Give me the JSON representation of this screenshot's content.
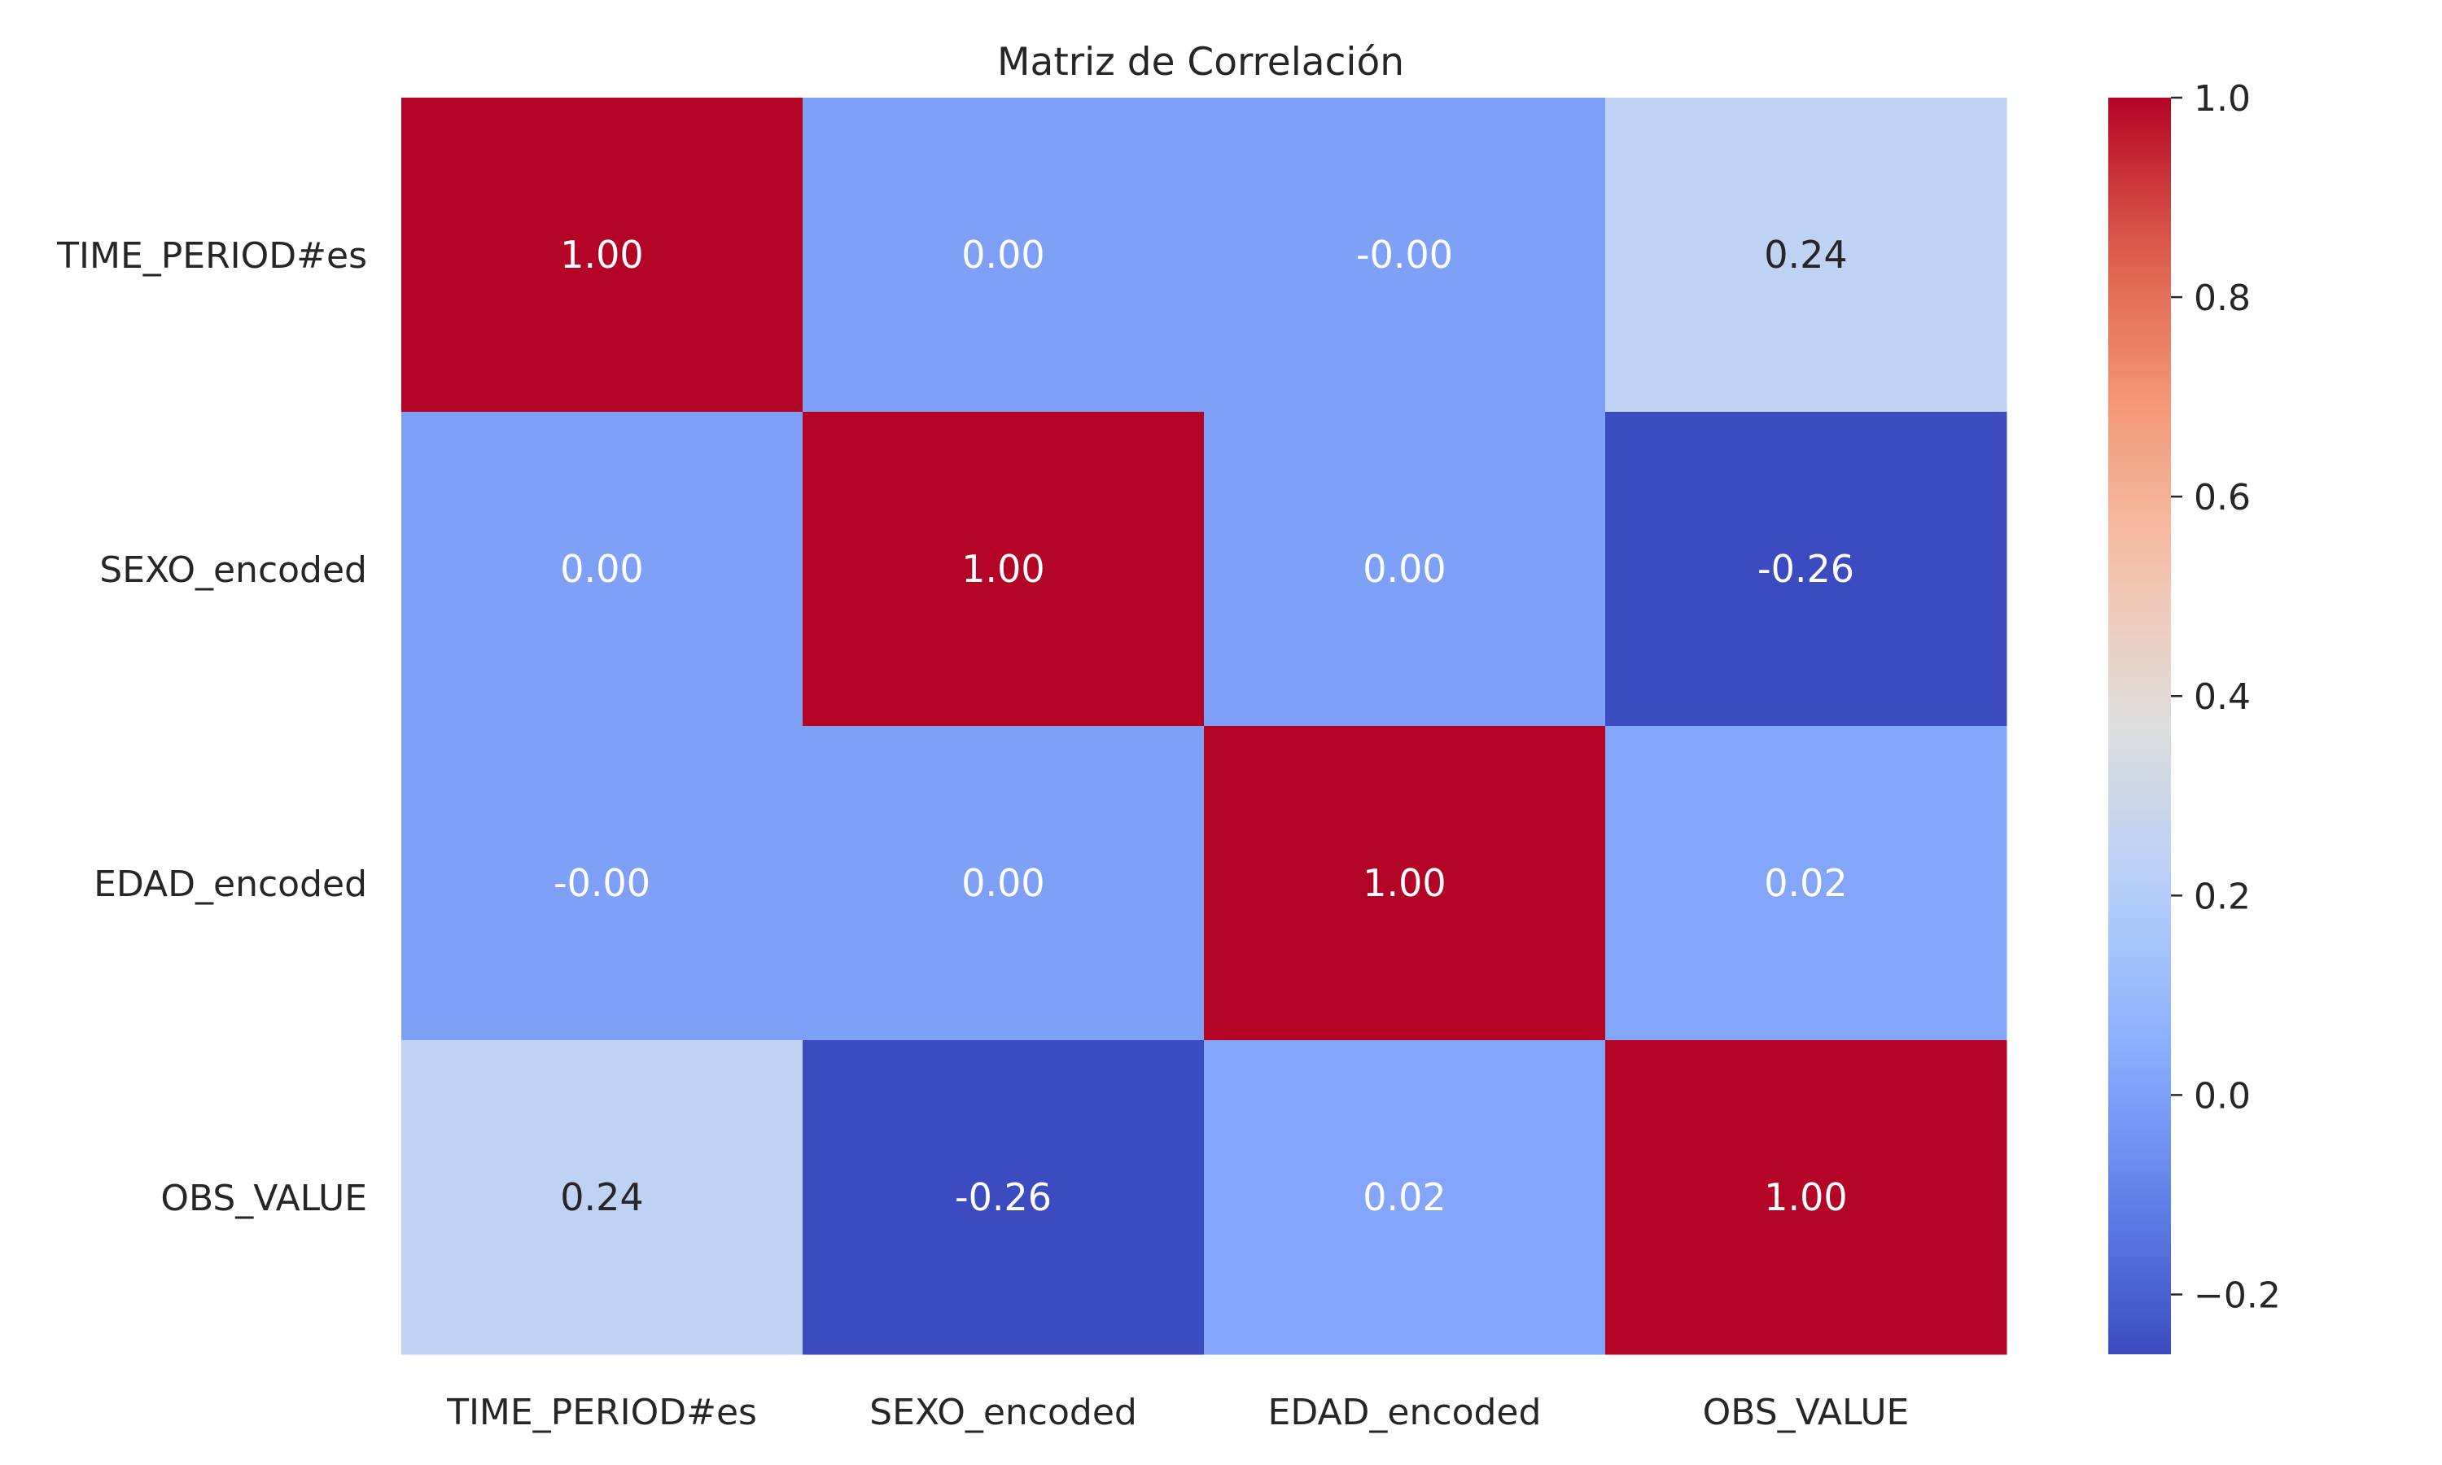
{
  "chart_data": {
    "type": "heatmap",
    "title": "Matriz de Correlación",
    "row_labels": [
      "TIME_PERIOD#es",
      "SEXO_encoded",
      "EDAD_encoded",
      "OBS_VALUE"
    ],
    "col_labels": [
      "TIME_PERIOD#es",
      "SEXO_encoded",
      "EDAD_encoded",
      "OBS_VALUE"
    ],
    "values": [
      [
        1.0,
        0.0,
        -0.0,
        0.24
      ],
      [
        0.0,
        1.0,
        0.0,
        -0.26
      ],
      [
        -0.0,
        0.0,
        1.0,
        0.02
      ],
      [
        0.24,
        -0.26,
        0.02,
        1.0
      ]
    ],
    "cell_labels": [
      [
        "1.00",
        "0.00",
        "-0.00",
        "0.24"
      ],
      [
        "0.00",
        "1.00",
        "0.00",
        "-0.26"
      ],
      [
        "-0.00",
        "0.00",
        "1.00",
        "0.02"
      ],
      [
        "0.24",
        "-0.26",
        "0.02",
        "1.00"
      ]
    ],
    "colormap": "coolwarm",
    "colorbar": {
      "vmin": -0.26,
      "vmax": 1.0,
      "ticks": [
        1.0,
        0.8,
        0.6,
        0.4,
        0.2,
        0.0,
        -0.2
      ],
      "tick_labels": [
        "1.0",
        "0.8",
        "0.6",
        "0.4",
        "0.2",
        "0.0",
        "−0.2"
      ],
      "placement": "right"
    },
    "grid": false
  },
  "colors": {
    "low": "#3b4cc0",
    "mid": "#dddddd",
    "high": "#b40426",
    "text_dark": "#262626",
    "text_light": "#ffffff"
  }
}
